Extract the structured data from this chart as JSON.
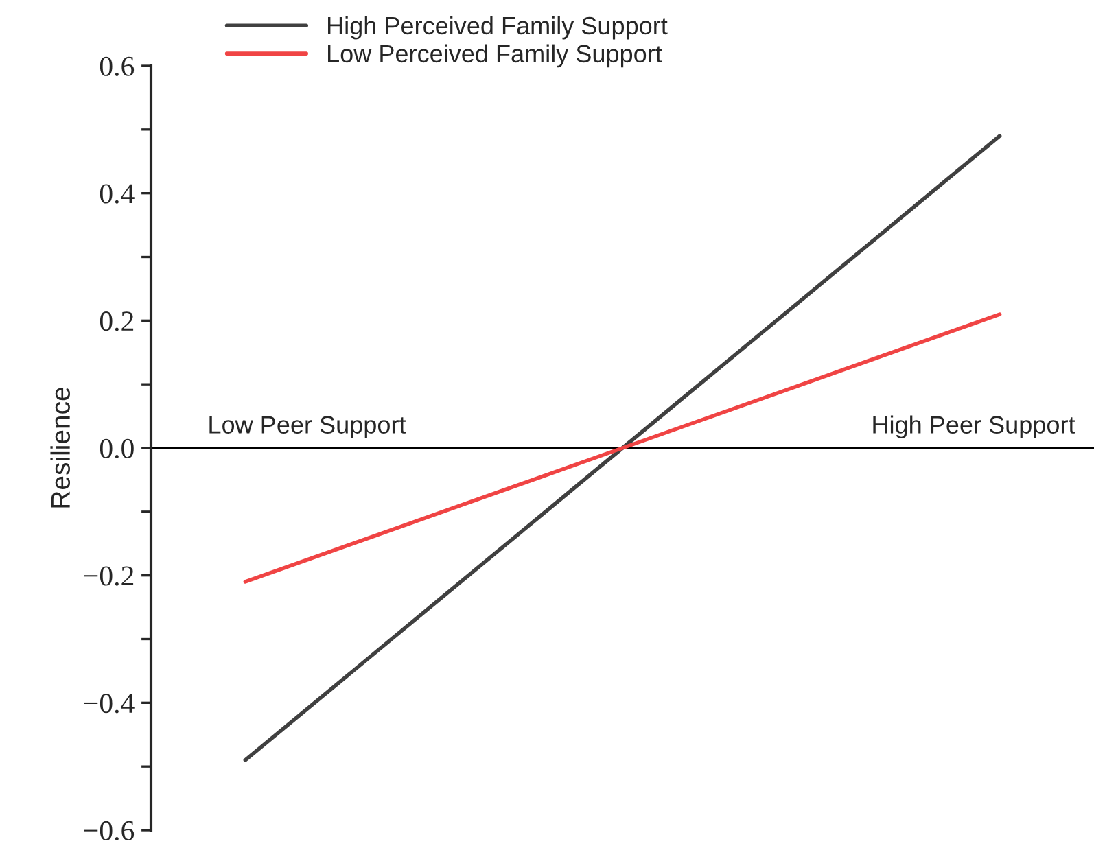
{
  "chart_data": {
    "type": "line",
    "ylabel": "Resilience",
    "categories": [
      null,
      null,
      null,
      null,
      null
    ],
    "series": [
      {
        "name": "High Perceived Family Support",
        "color": "#404040",
        "values": [
          -0.49,
          -0.245,
          0.0,
          0.245,
          0.49
        ]
      },
      {
        "name": "Low Perceived Family Support",
        "color": "#f04444",
        "values": [
          -0.21,
          -0.105,
          0.0,
          0.105,
          0.21
        ]
      }
    ],
    "ylim": [
      -0.6,
      0.6
    ],
    "yticks": [
      -0.6,
      {
        "value": -0.5,
        "label": null
      },
      -0.4,
      {
        "value": -0.3,
        "label": null
      },
      -0.2,
      {
        "value": -0.1,
        "label": null
      },
      {
        "value": 0.0,
        "label": "0.0"
      },
      {
        "value": 0.1,
        "label": null
      },
      0.2,
      {
        "value": 0.3,
        "label": null
      },
      0.4,
      {
        "value": 0.5,
        "label": null
      },
      0.6
    ],
    "annotations": [
      "Low Peer Support",
      "High Peer Support"
    ],
    "ref_lines": [
      {
        "axis": "y",
        "value": 0.0,
        "color": "#000000"
      }
    ],
    "legend": "top",
    "grid": false,
    "marker": "none",
    "line_style": "solid"
  }
}
